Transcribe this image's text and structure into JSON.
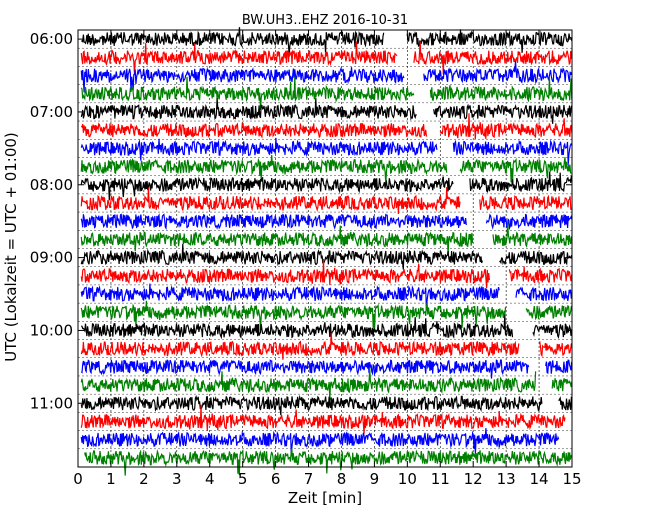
{
  "chart_data": {
    "type": "line",
    "title": "BW.UH3..EHZ 2016-10-31",
    "xlabel": "Zeit  [min]",
    "ylabel": "UTC (Lokalzeit = UTC + 01:00)",
    "xlim": [
      0,
      15
    ],
    "x_ticks": [
      "0",
      "1",
      "2",
      "3",
      "4",
      "5",
      "6",
      "7",
      "8",
      "9",
      "10",
      "11",
      "12",
      "13",
      "14",
      "15"
    ],
    "y_tick_labels": [
      "06:00",
      "07:00",
      "08:00",
      "09:00",
      "10:00",
      "11:00"
    ],
    "grid": true,
    "color_cycle": [
      "#000000",
      "#ff0000",
      "#0000ff",
      "#008000"
    ],
    "rows": [
      {
        "start": 0.1,
        "end": 15.0,
        "gap": [
          9.3,
          10.0
        ]
      },
      {
        "start": 0.1,
        "end": 15.0,
        "gap": [
          9.7,
          10.2
        ]
      },
      {
        "start": 0.1,
        "end": 15.0,
        "gap": [
          9.9,
          10.5
        ]
      },
      {
        "start": 0.1,
        "end": 15.0,
        "gap": [
          10.2,
          10.7
        ]
      },
      {
        "start": 0.1,
        "end": 15.0,
        "gap": [
          10.3,
          10.8
        ]
      },
      {
        "start": 0.1,
        "end": 15.0,
        "gap": [
          10.6,
          11.0
        ]
      },
      {
        "start": 0.1,
        "end": 15.0,
        "gap": [
          10.9,
          11.4
        ]
      },
      {
        "start": 0.1,
        "end": 15.0,
        "gap": [
          11.2,
          11.6
        ]
      },
      {
        "start": 0.1,
        "end": 15.0,
        "gap": [
          11.4,
          11.9
        ]
      },
      {
        "start": 0.1,
        "end": 15.0,
        "gap": [
          11.6,
          12.2
        ]
      },
      {
        "start": 0.1,
        "end": 15.0,
        "gap": [
          11.8,
          12.4
        ]
      },
      {
        "start": 0.1,
        "end": 15.0,
        "gap": [
          12.0,
          12.6
        ]
      },
      {
        "start": 0.1,
        "end": 15.0,
        "gap": [
          12.3,
          12.8
        ]
      },
      {
        "start": 0.1,
        "end": 15.0,
        "gap": [
          12.5,
          13.1
        ]
      },
      {
        "start": 0.1,
        "end": 15.0,
        "gap": [
          12.8,
          13.3
        ]
      },
      {
        "start": 0.1,
        "end": 15.0,
        "gap": [
          13.0,
          13.6
        ]
      },
      {
        "start": 0.1,
        "end": 15.0,
        "gap": [
          13.2,
          13.8
        ]
      },
      {
        "start": 0.1,
        "end": 15.0,
        "gap": [
          13.4,
          14.0
        ]
      },
      {
        "start": 0.1,
        "end": 15.0,
        "gap": [
          13.7,
          14.2
        ]
      },
      {
        "start": 0.1,
        "end": 15.0,
        "gap": [
          13.9,
          14.4
        ]
      },
      {
        "start": 0.1,
        "end": 15.0,
        "gap": [
          14.1,
          14.6
        ]
      },
      {
        "start": 0.1,
        "end": 14.8,
        "gap": null
      },
      {
        "start": 0.1,
        "end": 14.6,
        "gap": null
      },
      {
        "start": 0.2,
        "end": 15.0,
        "gap": null
      }
    ]
  }
}
